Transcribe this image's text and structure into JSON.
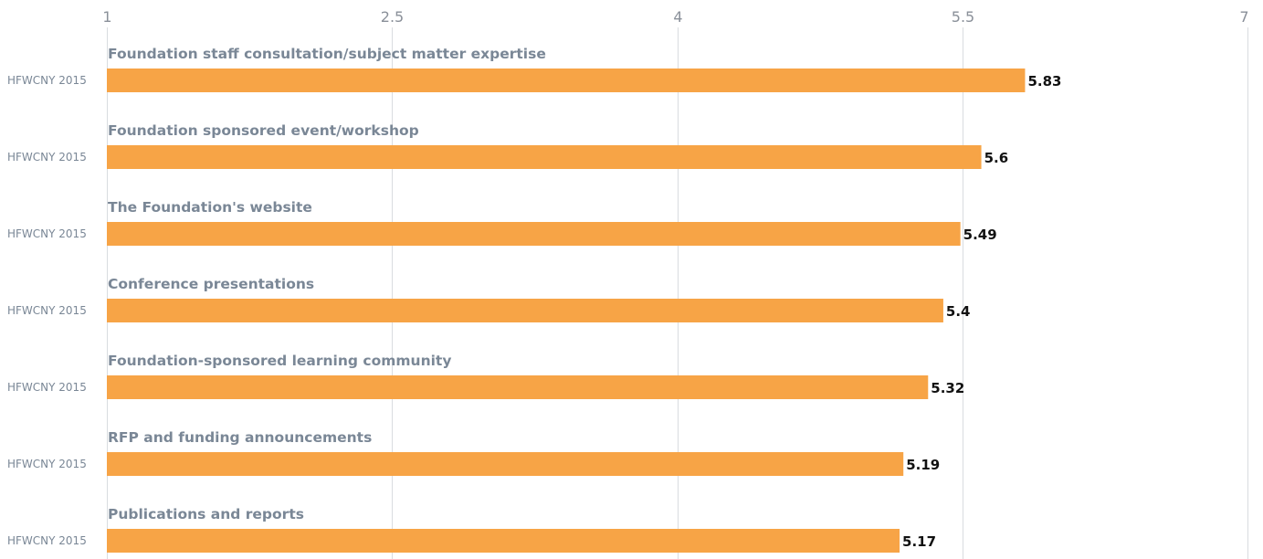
{
  "chart_data": {
    "type": "bar",
    "orientation": "horizontal",
    "xlim": [
      1,
      7
    ],
    "ticks": [
      1,
      2.5,
      4,
      5.5,
      7
    ],
    "tick_labels": [
      "1",
      "2.5",
      "4",
      "5.5",
      "7"
    ],
    "grid": true,
    "categories": [
      "Foundation staff consultation/subject matter expertise",
      "Foundation sponsored event/workshop",
      "The Foundation's website",
      "Conference presentations",
      "Foundation-sponsored learning community",
      "RFP and funding announcements",
      "Publications and reports"
    ],
    "series": [
      {
        "name": "HFWCNY 2015",
        "color": "#f7a446",
        "values": [
          5.83,
          5.6,
          5.49,
          5.4,
          5.32,
          5.19,
          5.17
        ],
        "value_labels": [
          "5.83",
          "5.6",
          "5.49",
          "5.4",
          "5.32",
          "5.19",
          "5.17"
        ]
      }
    ]
  }
}
